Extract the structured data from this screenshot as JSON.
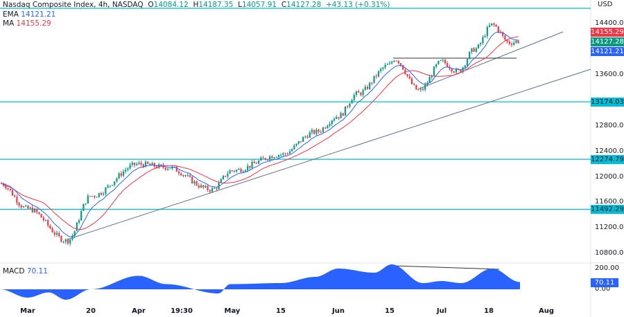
{
  "header": {
    "title": "Nasdaq Composite Index, 4h, NASDAQ",
    "open_label": "O",
    "open": "14084.12",
    "high_label": "H",
    "high": "14187.35",
    "low_label": "L",
    "low": "14057.91",
    "close_label": "C",
    "close": "14127.28",
    "change": "+43.13 (+0.31%)"
  },
  "ema": {
    "label": "EMA",
    "value": "14121.21"
  },
  "ma": {
    "label": "MA",
    "value": "14155.29"
  },
  "macd": {
    "label": "MACD",
    "value": "70.11",
    "axis": [
      "200.00",
      "0.00"
    ]
  },
  "currency": "USD",
  "colors": {
    "up": "#089981",
    "down": "#f23645",
    "ema": "#2962ff",
    "ma": "#f23645",
    "levels": "#00bcd4",
    "trend": "#5d6f8f",
    "macd": "#2962ff"
  },
  "chart_data": {
    "type": "candlestick",
    "y_ticks": [
      "14400.00",
      "13600.00",
      "12800.00",
      "12400.00",
      "12000.00",
      "11600.00",
      "11200.00",
      "10800.00"
    ],
    "x_ticks": [
      "Mar",
      "20",
      "Apr",
      "19:30",
      "May",
      "15",
      "Jun",
      "15",
      "Jul",
      "18",
      "Aug"
    ],
    "price_labels": {
      "ma": "14155.29",
      "close": "14127.28",
      "ema": "14121.21"
    },
    "horizontal_levels": [
      "13174.03",
      "12274.79",
      "11492.29"
    ],
    "close_path": [
      [
        "Feb end",
        11900
      ],
      [
        "Mar",
        11500
      ],
      [
        "Mar 13",
        11000
      ],
      [
        "20",
        11700
      ],
      [
        "Apr",
        12200
      ],
      [
        "Apr mid",
        12150
      ],
      [
        "Apr 25",
        11800
      ],
      [
        "May",
        12100
      ],
      [
        "15",
        12350
      ],
      [
        "May 25",
        12700
      ],
      [
        "Jun",
        12950
      ],
      [
        "Jun 7",
        13300
      ],
      [
        "15",
        13750
      ],
      [
        "Jun 16",
        13850
      ],
      [
        "Jun 27",
        13350
      ],
      [
        "Jul",
        13800
      ],
      [
        "Jul 7",
        13650
      ],
      [
        "Jul 13",
        14000
      ],
      [
        "18",
        14380
      ],
      [
        "Jul 24",
        14100
      ],
      [
        "Jul 26",
        14127.28
      ]
    ],
    "macd_path": [
      [
        "Feb end",
        0
      ],
      [
        "Mar",
        -80
      ],
      [
        "Mar 8",
        -30
      ],
      [
        "Mar 14",
        -100
      ],
      [
        "20",
        0
      ],
      [
        "Apr",
        130
      ],
      [
        "Apr 10",
        50
      ],
      [
        "May",
        -40
      ],
      [
        "May 5",
        50
      ],
      [
        "15",
        60
      ],
      [
        "May 25",
        120
      ],
      [
        "Jun",
        200
      ],
      [
        "Jun 10",
        160
      ],
      [
        "15",
        240
      ],
      [
        "Jun 25",
        60
      ],
      [
        "Jul",
        80
      ],
      [
        "Jul 10",
        60
      ],
      [
        "18",
        200
      ],
      [
        "Jul 26",
        70.11
      ]
    ]
  }
}
